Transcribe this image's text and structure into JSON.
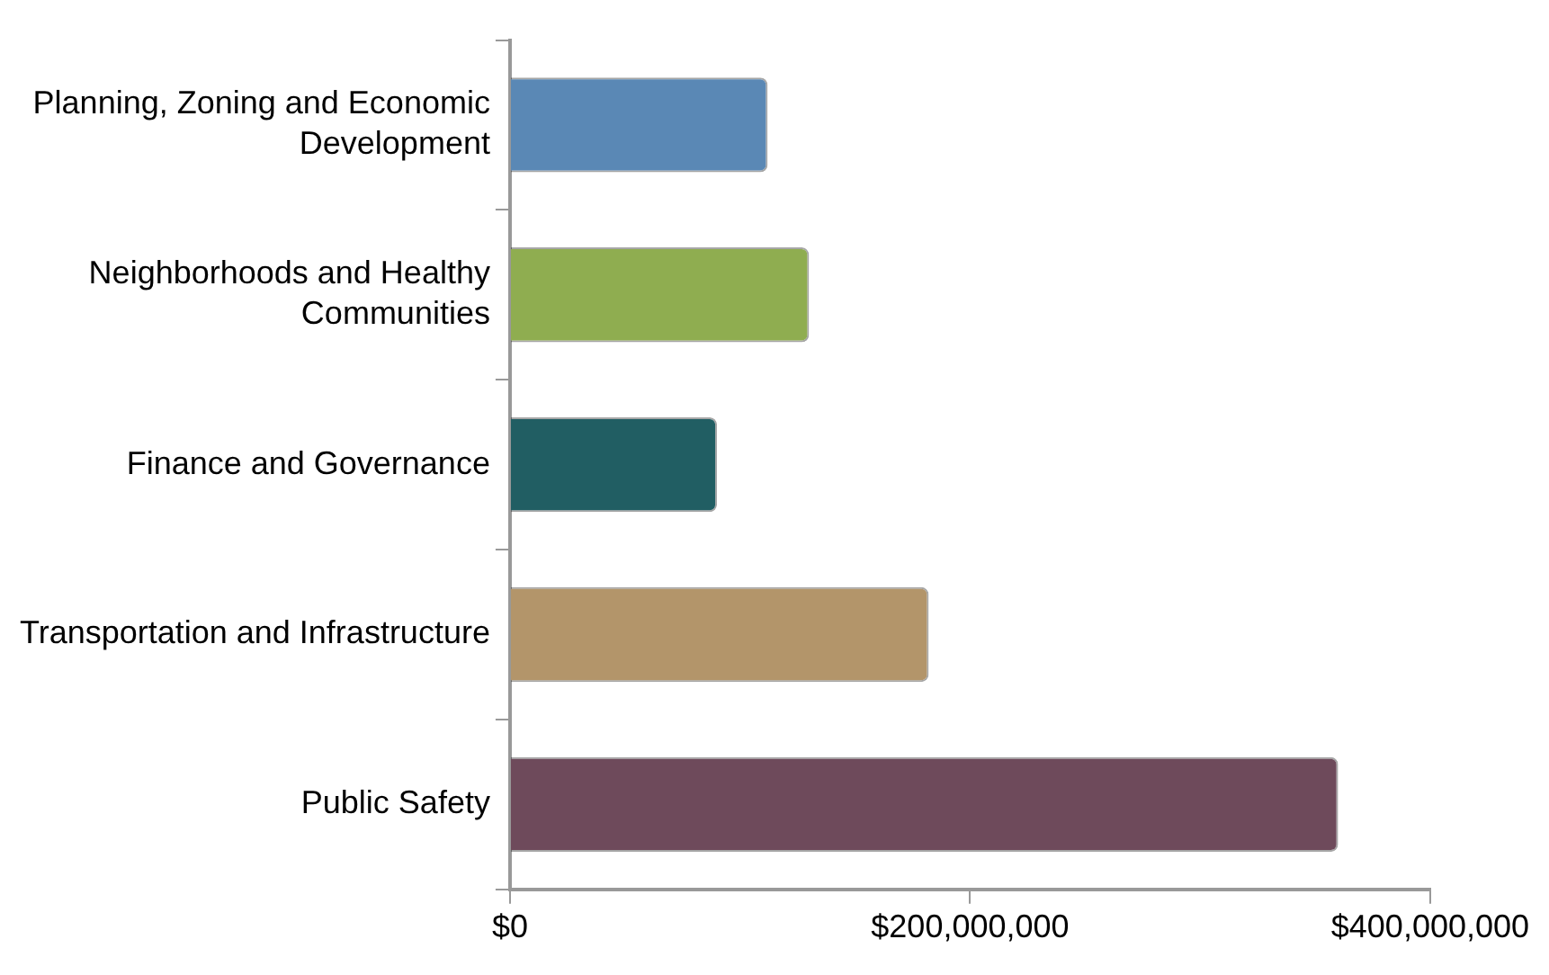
{
  "chart_data": {
    "type": "bar",
    "orientation": "horizontal",
    "categories": [
      "Planning, Zoning and Economic Development",
      "Neighborhoods and Healthy Communities",
      "Finance and Governance",
      "Transportation and Infrastructure",
      "Public Safety"
    ],
    "values": [
      112000000,
      130000000,
      90000000,
      182000000,
      360000000
    ],
    "colors": [
      "#5a88b5",
      "#8fad50",
      "#215e63",
      "#b3956a",
      "#6e4a5b"
    ],
    "xlim": [
      0,
      400000000
    ],
    "xticks": [
      {
        "value": 0,
        "label": "$0"
      },
      {
        "value": 200000000,
        "label": "$200,000,000"
      },
      {
        "value": 400000000,
        "label": "$400,000,000"
      }
    ],
    "grid": false,
    "legend": false
  }
}
